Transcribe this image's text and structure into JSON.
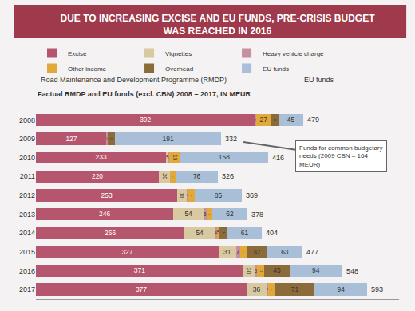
{
  "chart_data": {
    "type": "bar",
    "orientation": "horizontal",
    "stacked": true,
    "data_labels": true,
    "tick_labels": "y",
    "grid": false,
    "legend": "top",
    "title": "DUE TO INCREASING EXCISE AND EU FUNDS, PRE-CRISIS BUDGET WAS REACHED IN 2016",
    "subtitle": "Factual RMDP and EU funds (excl. CBN) 2008 – 2017, IN MEUR",
    "annotations": [
      "Road Maintenance and Development Programme (RMDP)",
      "EU funds",
      "Funds for common budgetary needs (2009 CBN – 164 MEUR)"
    ],
    "categories": [
      "2008",
      "2009",
      "2010",
      "2011",
      "2012",
      "2013",
      "2014",
      "2015",
      "2016",
      "2017"
    ],
    "xlim": [
      0,
      650
    ],
    "series": [
      {
        "name": "Excise",
        "color": "#b5566e",
        "values": [
          392,
          127,
          233,
          220,
          253,
          246,
          266,
          327,
          371,
          377
        ]
      },
      {
        "name": "Vignettes",
        "color": "#d9c9a0",
        "values": [
          null,
          null,
          5,
          20,
          18,
          54,
          54,
          31,
          20,
          36
        ]
      },
      {
        "name": "Heavy vehicle charge",
        "color": "#c7909f",
        "values": [
          2,
          1,
          1,
          null,
          1,
          5,
          4,
          7,
          5,
          3
        ]
      },
      {
        "name": "Other income",
        "color": "#e2a83a",
        "values": [
          27,
          null,
          19,
          10,
          12,
          11,
          5,
          12,
          13,
          12
        ]
      },
      {
        "name": "Overhead",
        "color": "#8c6b3a",
        "values": [
          13,
          13,
          null,
          null,
          null,
          null,
          14,
          37,
          45,
          71
        ]
      },
      {
        "name": "EU funds",
        "color": "#a9bfd8",
        "values": [
          45,
          191,
          158,
          76,
          85,
          62,
          61,
          63,
          94,
          94
        ]
      }
    ],
    "totals": [
      479,
      332,
      416,
      326,
      369,
      378,
      404,
      477,
      548,
      593
    ]
  }
}
